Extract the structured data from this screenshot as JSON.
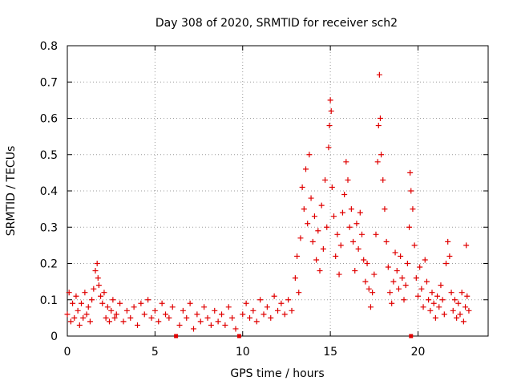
{
  "chart_data": {
    "type": "scatter",
    "title": "Day 308 of 2020, SRMTID for receiver sch2",
    "xlabel": "GPS time / hours",
    "ylabel": "SRMTID / TECUs",
    "xlim": [
      0,
      24
    ],
    "ylim": [
      0,
      0.8
    ],
    "xticks": [
      0,
      5,
      10,
      15,
      20
    ],
    "yticks": [
      0,
      0.1,
      0.2,
      0.3,
      0.4,
      0.5,
      0.6,
      0.7,
      0.8
    ],
    "grid": true,
    "marker": "+",
    "marker_color": "#e00000",
    "outlier_markers": [
      {
        "x": 6.2,
        "y": 0
      },
      {
        "x": 9.8,
        "y": 0
      },
      {
        "x": 19.6,
        "y": 0
      }
    ],
    "series": [
      {
        "name": "sch2",
        "points": [
          [
            0.0,
            0.06
          ],
          [
            0.1,
            0.12
          ],
          [
            0.2,
            0.04
          ],
          [
            0.3,
            0.09
          ],
          [
            0.4,
            0.05
          ],
          [
            0.5,
            0.11
          ],
          [
            0.6,
            0.07
          ],
          [
            0.7,
            0.03
          ],
          [
            0.8,
            0.09
          ],
          [
            0.9,
            0.05
          ],
          [
            1.0,
            0.12
          ],
          [
            1.1,
            0.06
          ],
          [
            1.2,
            0.08
          ],
          [
            1.3,
            0.04
          ],
          [
            1.4,
            0.1
          ],
          [
            1.5,
            0.13
          ],
          [
            1.6,
            0.18
          ],
          [
            1.7,
            0.2
          ],
          [
            1.75,
            0.16
          ],
          [
            1.8,
            0.14
          ],
          [
            1.9,
            0.11
          ],
          [
            2.0,
            0.09
          ],
          [
            2.1,
            0.12
          ],
          [
            2.2,
            0.05
          ],
          [
            2.3,
            0.08
          ],
          [
            2.4,
            0.04
          ],
          [
            2.5,
            0.07
          ],
          [
            2.6,
            0.1
          ],
          [
            2.7,
            0.05
          ],
          [
            2.8,
            0.06
          ],
          [
            3.0,
            0.09
          ],
          [
            3.2,
            0.04
          ],
          [
            3.4,
            0.07
          ],
          [
            3.6,
            0.05
          ],
          [
            3.8,
            0.08
          ],
          [
            4.0,
            0.03
          ],
          [
            4.2,
            0.09
          ],
          [
            4.4,
            0.06
          ],
          [
            4.6,
            0.1
          ],
          [
            4.8,
            0.05
          ],
          [
            5.0,
            0.07
          ],
          [
            5.2,
            0.04
          ],
          [
            5.4,
            0.09
          ],
          [
            5.6,
            0.06
          ],
          [
            5.8,
            0.05
          ],
          [
            6.0,
            0.08
          ],
          [
            6.4,
            0.03
          ],
          [
            6.6,
            0.07
          ],
          [
            6.8,
            0.05
          ],
          [
            7.0,
            0.09
          ],
          [
            7.2,
            0.02
          ],
          [
            7.4,
            0.06
          ],
          [
            7.6,
            0.04
          ],
          [
            7.8,
            0.08
          ],
          [
            8.0,
            0.05
          ],
          [
            8.2,
            0.03
          ],
          [
            8.4,
            0.07
          ],
          [
            8.6,
            0.04
          ],
          [
            8.8,
            0.06
          ],
          [
            9.0,
            0.03
          ],
          [
            9.2,
            0.08
          ],
          [
            9.4,
            0.05
          ],
          [
            9.6,
            0.02
          ],
          [
            10.0,
            0.06
          ],
          [
            10.2,
            0.09
          ],
          [
            10.4,
            0.05
          ],
          [
            10.6,
            0.07
          ],
          [
            10.8,
            0.04
          ],
          [
            11.0,
            0.1
          ],
          [
            11.2,
            0.06
          ],
          [
            11.4,
            0.08
          ],
          [
            11.6,
            0.05
          ],
          [
            11.8,
            0.11
          ],
          [
            12.0,
            0.07
          ],
          [
            12.2,
            0.09
          ],
          [
            12.4,
            0.06
          ],
          [
            12.6,
            0.1
          ],
          [
            12.8,
            0.07
          ],
          [
            13.0,
            0.16
          ],
          [
            13.1,
            0.22
          ],
          [
            13.2,
            0.12
          ],
          [
            13.3,
            0.27
          ],
          [
            13.4,
            0.41
          ],
          [
            13.5,
            0.35
          ],
          [
            13.6,
            0.46
          ],
          [
            13.7,
            0.31
          ],
          [
            13.8,
            0.5
          ],
          [
            13.9,
            0.38
          ],
          [
            14.0,
            0.26
          ],
          [
            14.1,
            0.33
          ],
          [
            14.2,
            0.21
          ],
          [
            14.3,
            0.29
          ],
          [
            14.4,
            0.18
          ],
          [
            14.5,
            0.36
          ],
          [
            14.6,
            0.24
          ],
          [
            14.7,
            0.43
          ],
          [
            14.8,
            0.3
          ],
          [
            14.9,
            0.52
          ],
          [
            14.95,
            0.58
          ],
          [
            15.0,
            0.65
          ],
          [
            15.05,
            0.62
          ],
          [
            15.1,
            0.41
          ],
          [
            15.2,
            0.33
          ],
          [
            15.3,
            0.22
          ],
          [
            15.4,
            0.28
          ],
          [
            15.5,
            0.17
          ],
          [
            15.6,
            0.25
          ],
          [
            15.7,
            0.34
          ],
          [
            15.8,
            0.39
          ],
          [
            15.9,
            0.48
          ],
          [
            16.0,
            0.43
          ],
          [
            16.1,
            0.3
          ],
          [
            16.2,
            0.35
          ],
          [
            16.3,
            0.26
          ],
          [
            16.4,
            0.18
          ],
          [
            16.5,
            0.31
          ],
          [
            16.6,
            0.24
          ],
          [
            16.7,
            0.34
          ],
          [
            16.8,
            0.28
          ],
          [
            16.9,
            0.21
          ],
          [
            17.0,
            0.15
          ],
          [
            17.1,
            0.2
          ],
          [
            17.2,
            0.13
          ],
          [
            17.3,
            0.08
          ],
          [
            17.4,
            0.12
          ],
          [
            17.5,
            0.17
          ],
          [
            17.6,
            0.28
          ],
          [
            17.7,
            0.48
          ],
          [
            17.75,
            0.58
          ],
          [
            17.8,
            0.72
          ],
          [
            17.85,
            0.6
          ],
          [
            17.9,
            0.5
          ],
          [
            18.0,
            0.43
          ],
          [
            18.1,
            0.35
          ],
          [
            18.2,
            0.26
          ],
          [
            18.3,
            0.19
          ],
          [
            18.4,
            0.12
          ],
          [
            18.5,
            0.09
          ],
          [
            18.6,
            0.15
          ],
          [
            18.7,
            0.23
          ],
          [
            18.8,
            0.18
          ],
          [
            18.9,
            0.13
          ],
          [
            19.0,
            0.22
          ],
          [
            19.1,
            0.16
          ],
          [
            19.2,
            0.1
          ],
          [
            19.3,
            0.14
          ],
          [
            19.4,
            0.2
          ],
          [
            19.5,
            0.3
          ],
          [
            19.55,
            0.45
          ],
          [
            19.6,
            0.4
          ],
          [
            19.7,
            0.35
          ],
          [
            19.8,
            0.25
          ],
          [
            19.9,
            0.16
          ],
          [
            20.0,
            0.11
          ],
          [
            20.1,
            0.19
          ],
          [
            20.2,
            0.13
          ],
          [
            20.3,
            0.08
          ],
          [
            20.4,
            0.21
          ],
          [
            20.5,
            0.15
          ],
          [
            20.6,
            0.1
          ],
          [
            20.7,
            0.07
          ],
          [
            20.8,
            0.12
          ],
          [
            20.9,
            0.09
          ],
          [
            21.0,
            0.05
          ],
          [
            21.1,
            0.11
          ],
          [
            21.2,
            0.08
          ],
          [
            21.3,
            0.14
          ],
          [
            21.4,
            0.1
          ],
          [
            21.5,
            0.06
          ],
          [
            21.6,
            0.2
          ],
          [
            21.7,
            0.26
          ],
          [
            21.8,
            0.22
          ],
          [
            21.9,
            0.12
          ],
          [
            22.0,
            0.07
          ],
          [
            22.1,
            0.1
          ],
          [
            22.2,
            0.05
          ],
          [
            22.3,
            0.09
          ],
          [
            22.4,
            0.06
          ],
          [
            22.5,
            0.12
          ],
          [
            22.6,
            0.04
          ],
          [
            22.7,
            0.08
          ],
          [
            22.75,
            0.25
          ],
          [
            22.8,
            0.11
          ],
          [
            22.9,
            0.07
          ]
        ]
      }
    ]
  }
}
